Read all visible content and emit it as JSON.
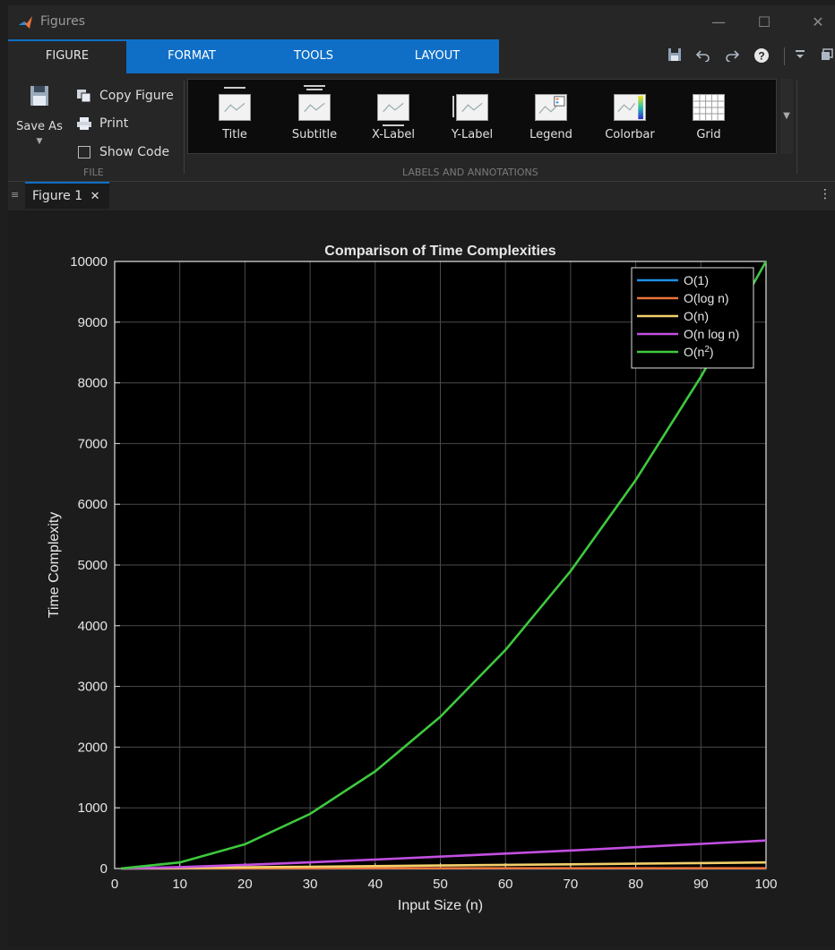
{
  "window": {
    "title": "Figures",
    "minimize": "—",
    "maximize": "☐",
    "close": "✕"
  },
  "tabs": [
    {
      "label": "FIGURE",
      "active": true
    },
    {
      "label": "FORMAT"
    },
    {
      "label": "TOOLS"
    },
    {
      "label": "LAYOUT"
    }
  ],
  "quick_access": [
    "save-icon",
    "undo-icon",
    "redo-icon",
    "help-icon",
    "dropdown-icon",
    "undock-icon"
  ],
  "ribbon": {
    "file": {
      "save_as": "Save As",
      "copy_figure": "Copy Figure",
      "print": "Print",
      "show_code": "Show Code",
      "show_code_checked": false,
      "group_label": "FILE"
    },
    "annotations": {
      "group_label": "LABELS AND ANNOTATIONS",
      "items": [
        "Title",
        "Subtitle",
        "X-Label",
        "Y-Label",
        "Legend",
        "Colorbar",
        "Grid"
      ]
    }
  },
  "doc_tab": {
    "label": "Figure 1",
    "close": "✕"
  },
  "colors": {
    "accent": "#0f6fc6",
    "o1": "#1f8fe6",
    "ologn": "#e8743b",
    "on": "#f2d06b",
    "onlogn": "#c24fe0",
    "on2": "#3ec93e"
  },
  "chart_data": {
    "type": "line",
    "title": "Comparison of Time Complexities",
    "xlabel": "Input Size (n)",
    "ylabel": "Time Complexity",
    "xlim": [
      0,
      100
    ],
    "ylim": [
      0,
      10000
    ],
    "xticks": [
      0,
      10,
      20,
      30,
      40,
      50,
      60,
      70,
      80,
      90,
      100
    ],
    "yticks": [
      0,
      1000,
      2000,
      3000,
      4000,
      5000,
      6000,
      7000,
      8000,
      9000,
      10000
    ],
    "grid": true,
    "legend_position": "top-right",
    "x": [
      1,
      10,
      20,
      30,
      40,
      50,
      60,
      70,
      80,
      90,
      100
    ],
    "series": [
      {
        "name": "O(1)",
        "values": [
          1,
          1,
          1,
          1,
          1,
          1,
          1,
          1,
          1,
          1,
          1
        ]
      },
      {
        "name": "O(log n)",
        "values": [
          0,
          2.3,
          3.0,
          3.4,
          3.7,
          3.9,
          4.1,
          4.2,
          4.4,
          4.5,
          4.6
        ]
      },
      {
        "name": "O(n)",
        "values": [
          1,
          10,
          20,
          30,
          40,
          50,
          60,
          70,
          80,
          90,
          100
        ]
      },
      {
        "name": "O(n log n)",
        "values": [
          0,
          23,
          60,
          102,
          148,
          196,
          246,
          297,
          351,
          405,
          461
        ]
      },
      {
        "name": "O(n²)",
        "label_base": "O(n",
        "label_sup": "2",
        "label_end": ")",
        "values": [
          1,
          100,
          400,
          900,
          1600,
          2500,
          3600,
          4900,
          6400,
          8100,
          10000
        ]
      }
    ]
  }
}
